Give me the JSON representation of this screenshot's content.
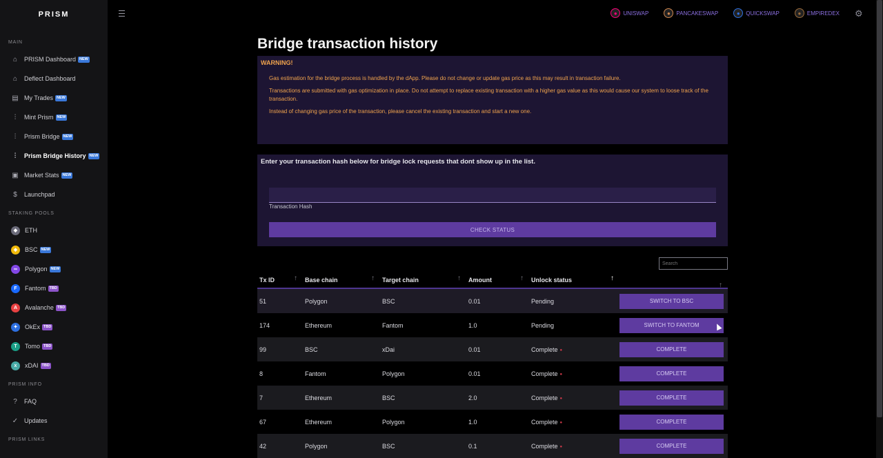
{
  "brand": "PRISM",
  "sidebar": {
    "sections": [
      {
        "label": "MAIN",
        "items": [
          {
            "label": "PRISM Dashboard",
            "icon": "home-icon",
            "badge": "NEW"
          },
          {
            "label": "Deflect Dashboard",
            "icon": "home-icon",
            "badge": ""
          },
          {
            "label": "My Trades",
            "icon": "document-icon",
            "badge": "NEW"
          },
          {
            "label": "Mint Prism",
            "icon": "waveform-icon",
            "badge": "NEW"
          },
          {
            "label": "Prism Bridge",
            "icon": "waveform-icon",
            "badge": "NEW"
          },
          {
            "label": "Prism Bridge History",
            "icon": "waveform-icon",
            "badge": "NEW",
            "active": true
          },
          {
            "label": "Market Stats",
            "icon": "wallet-icon",
            "badge": "NEW"
          },
          {
            "label": "Launchpad",
            "icon": "dollar-icon",
            "badge": ""
          }
        ]
      },
      {
        "label": "STAKING POOLS",
        "items": [
          {
            "label": "ETH",
            "icon": "eth-icon",
            "badge": ""
          },
          {
            "label": "BSC",
            "icon": "bsc-icon",
            "badge": "NEW"
          },
          {
            "label": "Polygon",
            "icon": "polygon-icon",
            "badge": "NEW"
          },
          {
            "label": "Fantom",
            "icon": "fantom-icon",
            "badge": "TBD"
          },
          {
            "label": "Avalanche",
            "icon": "avalanche-icon",
            "badge": "TBD"
          },
          {
            "label": "OkEx",
            "icon": "okex-icon",
            "badge": "TBD"
          },
          {
            "label": "Tomo",
            "icon": "tomo-icon",
            "badge": "TBD"
          },
          {
            "label": "xDAI",
            "icon": "xdai-icon",
            "badge": "TBD"
          }
        ]
      },
      {
        "label": "PRISM INFO",
        "items": [
          {
            "label": "FAQ",
            "icon": "question-icon",
            "badge": ""
          },
          {
            "label": "Updates",
            "icon": "check-circle-icon",
            "badge": ""
          }
        ]
      },
      {
        "label": "PRISM LINKS",
        "items": []
      }
    ]
  },
  "topbar": {
    "dex_links": [
      {
        "label": "UNISWAP",
        "icon": "uniswap-icon",
        "color": "#ff007a"
      },
      {
        "label": "PANCAKESWAP",
        "icon": "pancakeswap-icon",
        "color": "#d1884f"
      },
      {
        "label": "QUICKSWAP",
        "icon": "quickswap-icon",
        "color": "#2d6fe0"
      },
      {
        "label": "EMPIREDEX",
        "icon": "empiredex-icon",
        "color": "#9b6b3a"
      }
    ]
  },
  "page": {
    "title": "Bridge transaction history",
    "warning": {
      "title": "WARNING!",
      "lines": [
        "Gas estimation for the bridge process is handled by the dApp. Please do not change or update gas price as this may result in transaction failure.",
        "Transactions are submitted with gas optimization in place. Do not attempt to replace existing transaction with a higher gas value as this would cause our system to loose track of the transaction.",
        "Instead of changing gas price of the transaction, please cancel the existing transaction and start a new one."
      ]
    },
    "hash_lookup": {
      "title": "Enter your transaction hash below for bridge lock requests that dont show up in the list.",
      "input_value": "",
      "input_label": "Transaction Hash",
      "button_label": "CHECK STATUS"
    },
    "search_placeholder": "Search",
    "table": {
      "columns": [
        "Tx ID",
        "Base chain",
        "Target chain",
        "Amount",
        "Unlock status",
        ""
      ],
      "rows": [
        {
          "tx_id": "51",
          "base": "Polygon",
          "target": "BSC",
          "amount": "0.01",
          "status": "Pending",
          "action": "SWITCH TO BSC"
        },
        {
          "tx_id": "174",
          "base": "Ethereum",
          "target": "Fantom",
          "amount": "1.0",
          "status": "Pending",
          "action": "SWITCH TO FANTOM"
        },
        {
          "tx_id": "99",
          "base": "BSC",
          "target": "xDai",
          "amount": "0.01",
          "status": "Complete",
          "action": "COMPLETE"
        },
        {
          "tx_id": "8",
          "base": "Fantom",
          "target": "Polygon",
          "amount": "0.01",
          "status": "Complete",
          "action": "COMPLETE"
        },
        {
          "tx_id": "7",
          "base": "Ethereum",
          "target": "BSC",
          "amount": "2.0",
          "status": "Complete",
          "action": "COMPLETE"
        },
        {
          "tx_id": "67",
          "base": "Ethereum",
          "target": "Polygon",
          "amount": "1.0",
          "status": "Complete",
          "action": "COMPLETE"
        },
        {
          "tx_id": "42",
          "base": "Polygon",
          "target": "BSC",
          "amount": "0.1",
          "status": "Complete",
          "action": "COMPLETE"
        }
      ]
    }
  },
  "colors": {
    "accent": "#5e3ba0",
    "panel": "#1d1533",
    "warning_text": "#f0a34d",
    "status_dot": "#d23a4a"
  }
}
